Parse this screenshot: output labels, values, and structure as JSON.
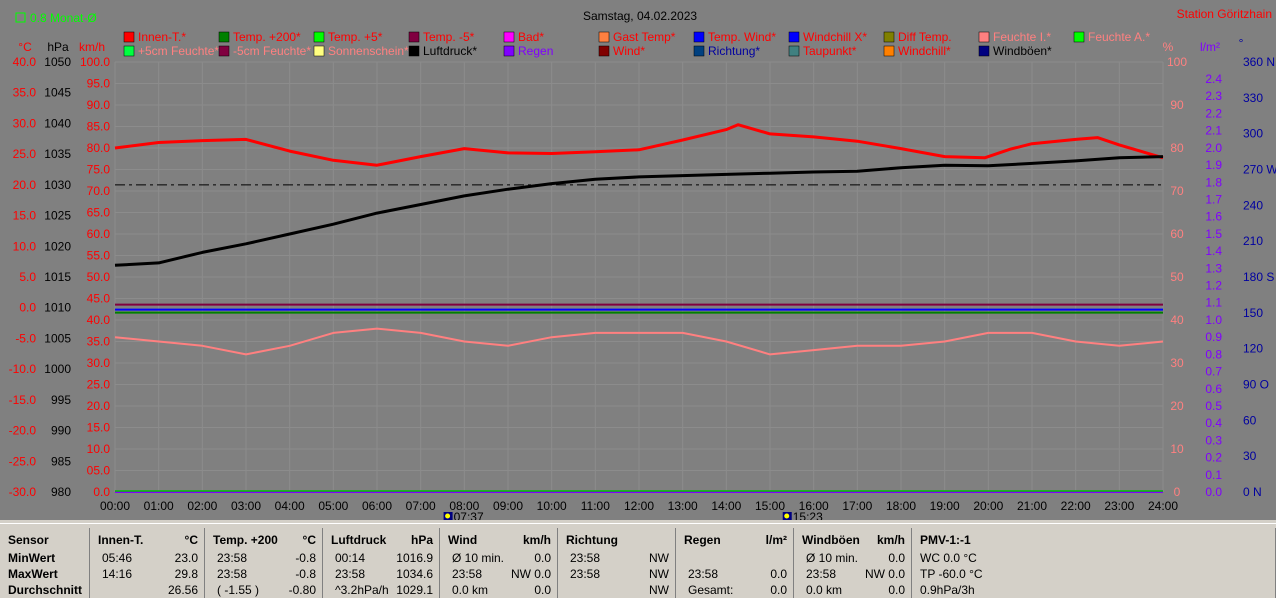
{
  "header": {
    "monat_label": "0.8 Monat-Ø",
    "title": "Samstag, 04.02.2023",
    "station": "Station Göritzhain"
  },
  "axis_units": {
    "temp": "°C",
    "pressure": "hPa",
    "speed": "km/h",
    "percent": "%",
    "rain": "l/m²",
    "direction": "°"
  },
  "colors": {
    "plot_bg": "#808080",
    "chart_bg": "#808080",
    "grid": "#8c8c8c",
    "temp_axis": "#ff0000",
    "pressure_axis": "#000000",
    "speed_axis": "#ff0000",
    "percent_axis": "#ff8080",
    "rain_axis": "#8000ff",
    "dir_axis": "#0000a0"
  },
  "legend": [
    {
      "label": "Innen-T.*",
      "color": "#ff0000",
      "text_color": "#ff0000"
    },
    {
      "label": "Temp. +200*",
      "color": "#008000",
      "text_color": "#ff0000"
    },
    {
      "label": "Temp. +5*",
      "color": "#00ff00",
      "text_color": "#ff0000"
    },
    {
      "label": "Temp. -5*",
      "color": "#800040",
      "text_color": "#ff0000"
    },
    {
      "label": "Bad*",
      "color": "#ff00ff",
      "text_color": "#ff0000"
    },
    {
      "label": "Gast Temp*",
      "color": "#ff8040",
      "text_color": "#ff0000"
    },
    {
      "label": "Temp. Wind*",
      "color": "#0000ff",
      "text_color": "#ff0000"
    },
    {
      "label": "Windchill X*",
      "color": "#0000ff",
      "text_color": "#ff0000"
    },
    {
      "label": "Diff Temp.",
      "color": "#808000",
      "text_color": "#ff0000"
    },
    {
      "label": "Feuchte I.*",
      "color": "#ff8080",
      "text_color": "#ff8080"
    },
    {
      "label": "Feuchte A.*",
      "color": "#00ff00",
      "text_color": "#ff8080"
    },
    {
      "label": "+5cm Feuchte*",
      "color": "#00ff40",
      "text_color": "#ff8080"
    },
    {
      "label": "-5cm Feuchte*",
      "color": "#800040",
      "text_color": "#ff8080"
    },
    {
      "label": "Sonnenschein*",
      "color": "#ffff80",
      "text_color": "#ff8080"
    },
    {
      "label": "Luftdruck*",
      "color": "#000000",
      "text_color": "#000000"
    },
    {
      "label": "Regen",
      "color": "#8000ff",
      "text_color": "#8000ff"
    },
    {
      "label": "Wind*",
      "color": "#800000",
      "text_color": "#ff0000"
    },
    {
      "label": "Richtung*",
      "color": "#004080",
      "text_color": "#0000a0"
    },
    {
      "label": "Taupunkt*",
      "color": "#408080",
      "text_color": "#ff0000"
    },
    {
      "label": "Windchill*",
      "color": "#ff8000",
      "text_color": "#ff0000"
    },
    {
      "label": "Windböen*",
      "color": "#000080",
      "text_color": "#000000"
    }
  ],
  "axes": {
    "temp_ticks": [
      "40.0",
      "35.0",
      "30.0",
      "25.0",
      "20.0",
      "15.0",
      "10.0",
      "5.0",
      "0.0",
      "-5.0",
      "-10.0",
      "-15.0",
      "-20.0",
      "-25.0",
      "-30.0"
    ],
    "pressure_ticks": [
      "1050",
      "1045",
      "1040",
      "1035",
      "1030",
      "1025",
      "1020",
      "1015",
      "1010",
      "1005",
      "1000",
      "995",
      "990",
      "985",
      "980"
    ],
    "speed_ticks": [
      "100.0",
      "95.0",
      "90.0",
      "85.0",
      "80.0",
      "75.0",
      "70.0",
      "65.0",
      "60.0",
      "55.0",
      "50.0",
      "45.0",
      "40.0",
      "35.0",
      "30.0",
      "25.0",
      "20.0",
      "15.0",
      "10.0",
      "05.0",
      "0.0"
    ],
    "percent_ticks": [
      "100",
      "90",
      "80",
      "70",
      "60",
      "50",
      "40",
      "30",
      "20",
      "10",
      "0"
    ],
    "rain_ticks": [
      "2.4",
      "2.3",
      "2.2",
      "2.1",
      "2.0",
      "1.9",
      "1.8",
      "1.7",
      "1.6",
      "1.5",
      "1.4",
      "1.3",
      "1.2",
      "1.1",
      "1.0",
      "0.9",
      "0.8",
      "0.7",
      "0.6",
      "0.5",
      "0.4",
      "0.3",
      "0.2",
      "0.1",
      "0.0"
    ],
    "dir_ticks": [
      "360 N",
      "330",
      "300",
      "270 W",
      "240",
      "210",
      "180 S",
      "150",
      "120",
      "90  O",
      "60",
      "30",
      "0   N"
    ],
    "time_ticks": [
      "00:00",
      "01:00",
      "02:00",
      "03:00",
      "04:00",
      "05:00",
      "06:00",
      "07:00",
      "08:00",
      "09:00",
      "10:00",
      "11:00",
      "12:00",
      "13:00",
      "14:00",
      "15:00",
      "16:00",
      "17:00",
      "18:00",
      "19:00",
      "20:00",
      "21:00",
      "22:00",
      "23:00",
      "24:00"
    ],
    "sunrise": "07:37",
    "sunset": "15:23"
  },
  "chart_data": {
    "type": "line",
    "title": "Samstag, 04.02.2023",
    "x_range": [
      "00:00",
      "24:00"
    ],
    "temp_range": [
      -30,
      40
    ],
    "pressure_range": [
      980,
      1050
    ],
    "series": [
      {
        "name": "Innen-T.*",
        "axis": "temp",
        "color": "#ff0000",
        "x": [
          "00:00",
          "01:00",
          "02:00",
          "03:00",
          "04:00",
          "05:00",
          "06:00",
          "07:00",
          "08:00",
          "09:00",
          "10:00",
          "11:00",
          "12:00",
          "13:00",
          "14:00",
          "14:16",
          "15:00",
          "16:00",
          "17:00",
          "18:00",
          "19:00",
          "19:55",
          "20:30",
          "21:00",
          "22:00",
          "22:30",
          "23:00",
          "24:00"
        ],
        "y": [
          26.0,
          26.9,
          27.2,
          27.4,
          25.5,
          24.0,
          23.2,
          24.6,
          25.9,
          25.2,
          25.1,
          25.4,
          25.7,
          27.3,
          29.0,
          29.8,
          28.3,
          27.8,
          27.1,
          25.9,
          24.6,
          24.4,
          25.8,
          26.7,
          27.4,
          27.7,
          26.5,
          24.4
        ]
      },
      {
        "name": "Luftdruck*",
        "axis": "pressure",
        "color": "#000000",
        "x": [
          "00:00",
          "01:00",
          "02:00",
          "03:00",
          "04:00",
          "05:00",
          "06:00",
          "07:00",
          "08:00",
          "09:00",
          "10:00",
          "11:00",
          "12:00",
          "13:00",
          "14:00",
          "15:00",
          "16:00",
          "17:00",
          "18:00",
          "19:00",
          "20:00",
          "21:00",
          "22:00",
          "23:00",
          "24:00"
        ],
        "y": [
          1016.9,
          1017.3,
          1019.0,
          1020.4,
          1022.0,
          1023.6,
          1025.4,
          1026.8,
          1028.2,
          1029.3,
          1030.2,
          1030.9,
          1031.3,
          1031.5,
          1031.7,
          1031.9,
          1032.1,
          1032.2,
          1032.8,
          1033.2,
          1033.1,
          1033.5,
          1033.9,
          1034.4,
          1034.6
        ]
      },
      {
        "name": "Feuchte I.*",
        "axis": "percent",
        "color": "#ff8080",
        "x": [
          "00:00",
          "01:00",
          "02:00",
          "03:00",
          "04:00",
          "05:00",
          "06:00",
          "07:00",
          "08:00",
          "09:00",
          "10:00",
          "11:00",
          "12:00",
          "13:00",
          "14:00",
          "15:00",
          "16:00",
          "17:00",
          "18:00",
          "19:00",
          "20:00",
          "21:00",
          "22:00",
          "23:00",
          "24:00"
        ],
        "y": [
          36,
          35,
          34,
          32,
          34,
          37,
          38,
          37,
          35,
          34,
          36,
          37,
          37,
          37,
          35,
          32,
          33,
          34,
          34,
          35,
          37,
          37,
          35,
          34,
          35
        ]
      },
      {
        "name": "Temp. +200*",
        "axis": "temp",
        "color": "#008000",
        "x": [
          "00:00",
          "24:00"
        ],
        "y": [
          -0.8,
          -0.8
        ]
      },
      {
        "name": "Windchill X*",
        "axis": "temp",
        "color": "#0000ff",
        "x": [
          "00:00",
          "24:00"
        ],
        "y": [
          -0.3,
          -0.3
        ]
      },
      {
        "name": "Temp. -5*",
        "axis": "temp",
        "color": "#800040",
        "x": [
          "00:00",
          "24:00"
        ],
        "y": [
          0.5,
          0.5
        ]
      },
      {
        "name": "Regen",
        "axis": "rain",
        "color": "#8000ff",
        "x": [
          "00:00",
          "24:00"
        ],
        "y": [
          0.0,
          0.0
        ]
      }
    ],
    "reference_line": {
      "label": "0.8 Monat-Ø",
      "axis": "pressure",
      "value": 1030
    }
  },
  "stats": {
    "sensor": {
      "title": "Sensor",
      "rows": [
        "MinWert",
        "MaxWert",
        "Durchschnitt"
      ]
    },
    "innen": {
      "title": "Innen-T.",
      "unit": "°C",
      "rows": [
        [
          "05:46",
          "23.0"
        ],
        [
          "14:16",
          "29.8"
        ],
        [
          "",
          "26.56"
        ]
      ]
    },
    "temp200": {
      "title": "Temp. +200",
      "unit": "°C",
      "rows": [
        [
          "23:58",
          "-0.8"
        ],
        [
          "23:58",
          "-0.8"
        ],
        [
          "( -1.55 )",
          "-0.80"
        ]
      ]
    },
    "luftdruck": {
      "title": "Luftdruck",
      "unit": "hPa",
      "rows": [
        [
          "00:14",
          "1016.9"
        ],
        [
          "23:58",
          "1034.6"
        ],
        [
          "^3.2hPa/h",
          "1029.1"
        ]
      ]
    },
    "wind": {
      "title": "Wind",
      "unit": "km/h",
      "rows": [
        [
          "Ø 10 min.",
          "0.0"
        ],
        [
          "23:58",
          "NW 0.0"
        ],
        [
          "0.0 km",
          "0.0"
        ]
      ]
    },
    "richtung": {
      "title": "Richtung",
      "rows": [
        [
          "23:58",
          "NW"
        ],
        [
          "23:58",
          "NW"
        ],
        [
          "",
          "NW"
        ]
      ]
    },
    "regen": {
      "title": "Regen",
      "unit": "l/m²",
      "rows": [
        [
          "",
          ""
        ],
        [
          "23:58",
          "0.0"
        ],
        [
          "Gesamt:",
          "0.0"
        ]
      ]
    },
    "windboeen": {
      "title": "Windböen",
      "unit": "km/h",
      "rows": [
        [
          "Ø 10 min.",
          "0.0"
        ],
        [
          "23:58",
          "NW 0.0"
        ],
        [
          "0.0 km",
          "0.0"
        ]
      ]
    },
    "pmv": {
      "title": "PMV-1:-1",
      "rows": [
        "WC 0.0 °C",
        "TP -60.0 °C",
        "0.9hPa/3h"
      ]
    }
  }
}
